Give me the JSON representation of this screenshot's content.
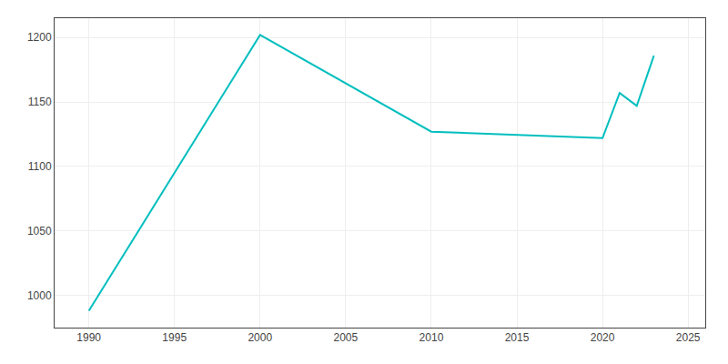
{
  "chart_data": {
    "type": "line",
    "x": [
      1990,
      2000,
      2010,
      2020,
      2021,
      2022,
      2023
    ],
    "values": [
      988,
      1202,
      1127,
      1122,
      1157,
      1147,
      1186
    ],
    "color": "#00BEBE",
    "xlim": [
      1988,
      2026
    ],
    "ylim": [
      975,
      1215
    ],
    "xticks": [
      1990,
      1995,
      2000,
      2005,
      2010,
      2015,
      2020,
      2025
    ],
    "yticks": [
      1000,
      1050,
      1100,
      1150,
      1200
    ],
    "grid": true
  }
}
